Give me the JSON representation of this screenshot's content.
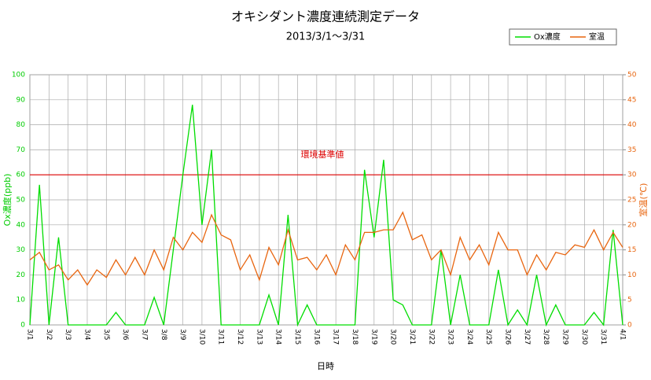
{
  "chart_data": {
    "type": "line",
    "title": "オキシダント濃度連続測定データ",
    "subtitle": "2013/3/1～3/31",
    "xlabel": "日時",
    "ylabel": "Ox濃度(ppb)",
    "y2label": "室温(℃)",
    "x": [
      0,
      0.5,
      1,
      1.5,
      2,
      2.5,
      3,
      3.5,
      4,
      4.5,
      5,
      5.5,
      6,
      6.5,
      7,
      7.5,
      8,
      8.5,
      9,
      9.5,
      10,
      10.5,
      11,
      11.5,
      12,
      12.5,
      13,
      13.5,
      14,
      14.5,
      15,
      15.5,
      16,
      16.5,
      17,
      17.5,
      18,
      18.5,
      19,
      19.5,
      20,
      20.5,
      21,
      21.5,
      22,
      22.5,
      23,
      23.5,
      24,
      24.5,
      25,
      25.5,
      26,
      26.5,
      27,
      27.5,
      28,
      28.5,
      29,
      29.5,
      30,
      30.5,
      31
    ],
    "series": [
      {
        "name": "Ox濃度",
        "color": "#00dd00",
        "axis": "y",
        "values": [
          0,
          56,
          0,
          35,
          0,
          0,
          0,
          0,
          0,
          5,
          0,
          0,
          0,
          11,
          0,
          30,
          60,
          88,
          40,
          70,
          0,
          0,
          0,
          0,
          0,
          12,
          0,
          44,
          0,
          8,
          0,
          0,
          0,
          0,
          0,
          62,
          35,
          66,
          10,
          8,
          0,
          0,
          0,
          30,
          0,
          20,
          0,
          0,
          0,
          22,
          0,
          6,
          0,
          20,
          0,
          8,
          0,
          0,
          0,
          5,
          0,
          38,
          0
        ]
      },
      {
        "name": "室温",
        "color": "#e8650f",
        "axis": "y2",
        "values": [
          13,
          14.5,
          11,
          12,
          9,
          11,
          8,
          11,
          9.5,
          13,
          10,
          13.5,
          10,
          15,
          11,
          17.5,
          15,
          18.5,
          16.5,
          22,
          18,
          17,
          11,
          14,
          9,
          15.5,
          12,
          19,
          13,
          13.5,
          11,
          14,
          10,
          16,
          13,
          18.5,
          18.5,
          19,
          19,
          22.5,
          17,
          18,
          13,
          15,
          10,
          17.5,
          13,
          16,
          12,
          18.5,
          15,
          15,
          10,
          14,
          11,
          14.5,
          14,
          16,
          15.5,
          19,
          15,
          18.5,
          15.5
        ]
      }
    ],
    "xlim": [
      0,
      31
    ],
    "xticks": [
      {
        "value": 0,
        "label": "3/1"
      },
      {
        "value": 1,
        "label": "3/2"
      },
      {
        "value": 2,
        "label": "3/3"
      },
      {
        "value": 3,
        "label": "3/4"
      },
      {
        "value": 4,
        "label": "3/5"
      },
      {
        "value": 5,
        "label": "3/6"
      },
      {
        "value": 6,
        "label": "3/7"
      },
      {
        "value": 7,
        "label": "3/8"
      },
      {
        "value": 8,
        "label": "3/9"
      },
      {
        "value": 9,
        "label": "3/10"
      },
      {
        "value": 10,
        "label": "3/11"
      },
      {
        "value": 11,
        "label": "3/12"
      },
      {
        "value": 12,
        "label": "3/13"
      },
      {
        "value": 13,
        "label": "3/14"
      },
      {
        "value": 14,
        "label": "3/15"
      },
      {
        "value": 15,
        "label": "3/16"
      },
      {
        "value": 16,
        "label": "3/17"
      },
      {
        "value": 17,
        "label": "3/18"
      },
      {
        "value": 18,
        "label": "3/19"
      },
      {
        "value": 19,
        "label": "3/20"
      },
      {
        "value": 20,
        "label": "3/21"
      },
      {
        "value": 21,
        "label": "3/22"
      },
      {
        "value": 22,
        "label": "3/23"
      },
      {
        "value": 23,
        "label": "3/24"
      },
      {
        "value": 24,
        "label": "3/25"
      },
      {
        "value": 25,
        "label": "3/26"
      },
      {
        "value": 26,
        "label": "3/27"
      },
      {
        "value": 27,
        "label": "3/28"
      },
      {
        "value": 28,
        "label": "3/29"
      },
      {
        "value": 29,
        "label": "3/30"
      },
      {
        "value": 30,
        "label": "3/31"
      },
      {
        "value": 31,
        "label": "4/1"
      }
    ],
    "ylim": [
      0,
      100
    ],
    "yticks": [
      0,
      10,
      20,
      30,
      40,
      50,
      60,
      70,
      80,
      90,
      100
    ],
    "y2lim": [
      0,
      50
    ],
    "y2ticks": [
      0,
      5,
      10,
      15,
      20,
      25,
      30,
      35,
      40,
      45,
      50
    ],
    "reference_line": {
      "value": 60,
      "label": "環境基準値",
      "color": "#dd0000"
    },
    "grid": true,
    "legend": "upper right"
  }
}
